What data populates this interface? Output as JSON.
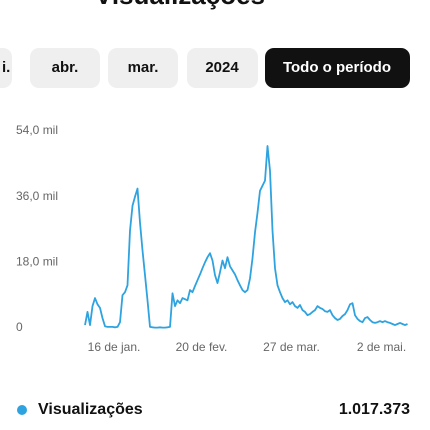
{
  "header": {
    "title": "Visualizações"
  },
  "tabs": [
    "i.",
    "abr.",
    "mar.",
    "2024",
    "Todo o período"
  ],
  "summary": {
    "total": "1.017.373"
  },
  "chart_data": {
    "type": "line",
    "categories": [
      null,
      null,
      null,
      null,
      null,
      null,
      null,
      null,
      null,
      null,
      "16 de jan.",
      null,
      null,
      null,
      null,
      null,
      null,
      null,
      null,
      null,
      null,
      null,
      null,
      null,
      null,
      null,
      null,
      null,
      null,
      null,
      null,
      null,
      null,
      null,
      null,
      null,
      null,
      null,
      null,
      null,
      null,
      null,
      null,
      null,
      null,
      "20 de fev.",
      null,
      null,
      null,
      null,
      null,
      null,
      null,
      null,
      null,
      null,
      null,
      null,
      null,
      null,
      null,
      null,
      null,
      null,
      null,
      null,
      null,
      null,
      null,
      null,
      null,
      null,
      null,
      null,
      null,
      null,
      null,
      null,
      null,
      null,
      null,
      "27 de mar.",
      null,
      null,
      null,
      null,
      null,
      null,
      null,
      null,
      null,
      null,
      null,
      null,
      null,
      null,
      null,
      null,
      null,
      null,
      null,
      null,
      null,
      null,
      null,
      null,
      null,
      null,
      null,
      null,
      null,
      null,
      null,
      null,
      null,
      null,
      null,
      "2 de mai.",
      null,
      null,
      null,
      null,
      null,
      null,
      null,
      null,
      null,
      null,
      null,
      null
    ],
    "series": [
      {
        "name": "Visualizações",
        "color": "#2ea3df",
        "values": [
          800,
          4400,
          800,
          6000,
          8200,
          6500,
          5500,
          2700,
          500,
          300,
          300,
          300,
          200,
          300,
          1600,
          9000,
          9800,
          11700,
          26700,
          33500,
          36000,
          38200,
          28900,
          21300,
          14500,
          7600,
          300,
          200,
          100,
          100,
          200,
          100,
          100,
          200,
          300,
          9500,
          6000,
          7600,
          6800,
          8200,
          7900,
          7600,
          10400,
          9800,
          11500,
          13100,
          14700,
          16400,
          18000,
          19400,
          20500,
          18500,
          14500,
          12300,
          15300,
          18500,
          16400,
          19400,
          16900,
          15800,
          14700,
          13100,
          11700,
          10400,
          9800,
          10400,
          13600,
          19100,
          26200,
          31600,
          37600,
          39000,
          40400,
          49900,
          43100,
          26700,
          16400,
          11700,
          9800,
          8200,
          7100,
          7600,
          6500,
          7100,
          6000,
          5500,
          6300,
          4900,
          4400,
          3500,
          3800,
          4400,
          4900,
          6000,
          5500,
          5200,
          4600,
          4400,
          4900,
          3500,
          2700,
          2200,
          2500,
          3300,
          3800,
          4900,
          6500,
          6800,
          3500,
          2500,
          1900,
          1600,
          2700,
          3000,
          2200,
          1600,
          1400,
          1600,
          1900,
          1600,
          1900,
          1600,
          1400,
          1100,
          800,
          1100,
          1400,
          1100,
          800,
          1100
        ]
      }
    ],
    "ylim": [
      0,
      54000
    ],
    "yticks": [
      0,
      {
        "value": 18000,
        "label": "18,0 mil"
      },
      {
        "value": 36000,
        "label": "36,0 mil"
      },
      {
        "value": 54000,
        "label": "54,0 mil"
      }
    ],
    "grid": false
  }
}
